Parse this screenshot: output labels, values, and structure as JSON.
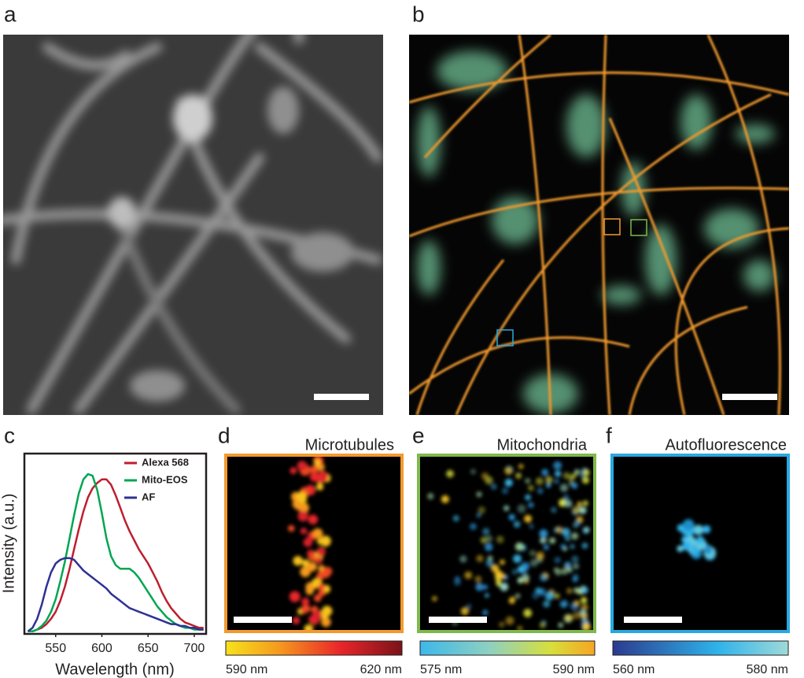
{
  "panels": [
    {
      "label": "a"
    },
    {
      "label": "b"
    },
    {
      "label": "c"
    },
    {
      "label": "d",
      "title": "Microtubules",
      "colorbar": [
        "590 nm",
        "620 nm"
      ]
    },
    {
      "label": "e",
      "title": "Mitochondria",
      "colorbar": [
        "575 nm",
        "590 nm"
      ]
    },
    {
      "label": "f",
      "title": "Autofluorescence",
      "colorbar": [
        "560 nm",
        "580 nm"
      ]
    }
  ],
  "chart_data": {
    "type": "line",
    "x_label": "Wavelength (nm)",
    "y_label": "Intensity (a.u.)",
    "x": [
      520,
      525,
      530,
      535,
      540,
      545,
      550,
      555,
      560,
      565,
      570,
      575,
      580,
      585,
      590,
      595,
      600,
      605,
      610,
      615,
      620,
      625,
      630,
      635,
      640,
      645,
      650,
      655,
      660,
      665,
      670,
      675,
      680,
      685,
      690,
      695,
      700,
      705,
      710
    ],
    "xlim": [
      517,
      712
    ],
    "xticks": [
      550,
      600,
      650,
      700
    ],
    "ylim": [
      0,
      1
    ],
    "legend": "upper right",
    "series": [
      {
        "name": "Alexa 568",
        "color": "#be1e2d",
        "values": [
          0.01,
          0.01,
          0.02,
          0.03,
          0.05,
          0.08,
          0.12,
          0.18,
          0.26,
          0.36,
          0.47,
          0.58,
          0.68,
          0.76,
          0.81,
          0.84,
          0.86,
          0.86,
          0.83,
          0.77,
          0.7,
          0.63,
          0.57,
          0.52,
          0.47,
          0.43,
          0.39,
          0.34,
          0.29,
          0.23,
          0.18,
          0.14,
          0.11,
          0.08,
          0.06,
          0.05,
          0.04,
          0.03,
          0.03
        ]
      },
      {
        "name": "Mito-EOS",
        "color": "#00a651",
        "values": [
          0.01,
          0.01,
          0.02,
          0.04,
          0.07,
          0.12,
          0.19,
          0.29,
          0.4,
          0.53,
          0.66,
          0.78,
          0.86,
          0.89,
          0.88,
          0.8,
          0.67,
          0.53,
          0.43,
          0.38,
          0.36,
          0.36,
          0.36,
          0.34,
          0.31,
          0.27,
          0.23,
          0.19,
          0.15,
          0.12,
          0.09,
          0.07,
          0.05,
          0.04,
          0.03,
          0.03,
          0.02,
          0.02,
          0.02
        ]
      },
      {
        "name": "AF",
        "color": "#2e3192",
        "values": [
          0.01,
          0.03,
          0.08,
          0.16,
          0.26,
          0.34,
          0.39,
          0.41,
          0.42,
          0.42,
          0.41,
          0.38,
          0.35,
          0.33,
          0.31,
          0.29,
          0.27,
          0.25,
          0.22,
          0.2,
          0.18,
          0.16,
          0.14,
          0.13,
          0.12,
          0.11,
          0.1,
          0.09,
          0.08,
          0.07,
          0.06,
          0.05,
          0.05,
          0.04,
          0.04,
          0.03,
          0.03,
          0.02,
          0.02
        ]
      }
    ]
  }
}
